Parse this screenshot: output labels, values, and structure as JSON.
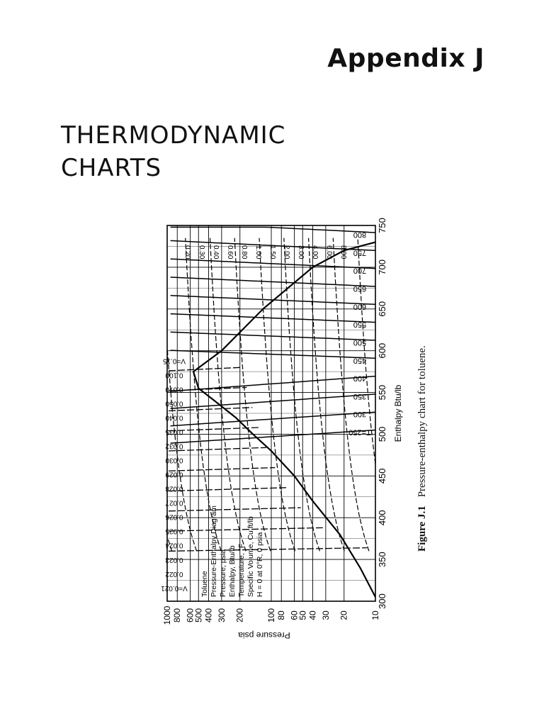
{
  "heading": {
    "appendix": "Appendix J",
    "title_line1": "THERMODYNAMIC",
    "title_line2": "CHARTS"
  },
  "figure": {
    "label": "Figure J.1",
    "caption": "Pressure-enthalpy chart for toluene."
  },
  "chart_data": {
    "type": "line",
    "xlabel": "Enthalpy Btu/lb",
    "ylabel": "Pressure psia",
    "xlim": [
      300,
      750
    ],
    "ylim": [
      10,
      1000
    ],
    "y_scale": "log",
    "x_ticks": [
      300,
      350,
      400,
      450,
      500,
      550,
      600,
      650,
      700,
      750
    ],
    "y_ticks": [
      10,
      20,
      30,
      40,
      50,
      60,
      80,
      100,
      200,
      300,
      400,
      500,
      600,
      800,
      1000
    ],
    "grid": true,
    "legend_text": [
      "Toluene",
      "Pressure-Enthalpy Diagram",
      "Pressure, psia",
      "Enthalpy, Btu/lb",
      "Temperature, °F",
      "Specific Volume, Cu ft/lb",
      "H = 0 at 0°R, 0 psia"
    ],
    "isotherm_labels": [
      "T=250",
      "300",
      "350",
      "400",
      "450",
      "500",
      "550",
      "600",
      "650",
      "700",
      "750",
      "800"
    ],
    "isotherm_values": [
      250,
      300,
      350,
      400,
      450,
      500,
      550,
      600,
      650,
      700,
      750,
      800
    ],
    "volume_labels_liquid": [
      "V=0.021",
      "0.022",
      "0.023",
      "0.024",
      "0.025",
      "0.026",
      "0.027",
      "0.028",
      "0.029",
      "0.030",
      "0.032",
      "0.035",
      "0.040",
      "0.050",
      "0.070",
      "0.100",
      "V=0.15"
    ],
    "volume_labels_vapor": [
      "0.20",
      "0.30",
      "0.40",
      "0.60",
      "0.80",
      "1.00",
      "1.50",
      "2.00",
      "3.00",
      "4.00",
      "6.00",
      "8.00"
    ],
    "saturation_dome": {
      "liquid_x": [
        305,
        340,
        380,
        420,
        450,
        480,
        500,
        520,
        540,
        555,
        575
      ],
      "liquid_y": [
        10,
        14,
        22,
        40,
        60,
        100,
        150,
        220,
        350,
        500,
        560
      ],
      "vapor_x": [
        575,
        600,
        650,
        700,
        720,
        730
      ],
      "vapor_y": [
        560,
        300,
        120,
        40,
        20,
        10
      ]
    }
  }
}
